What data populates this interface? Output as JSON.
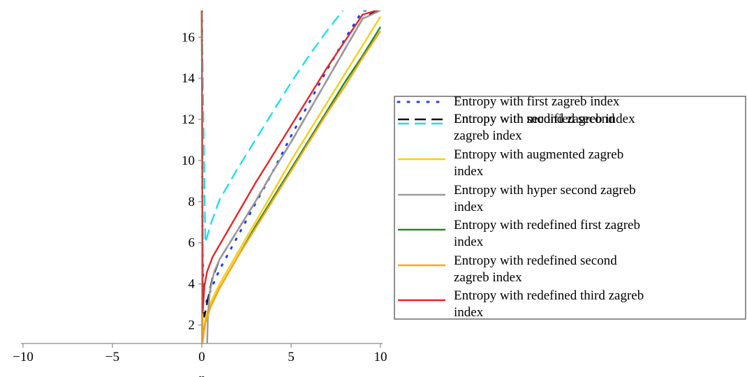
{
  "chart_data": {
    "type": "line",
    "xlabel": "n",
    "ylabel": "",
    "xlim": [
      -10,
      10
    ],
    "ylim": [
      1.1,
      17.3
    ],
    "x_ticks": [
      -10,
      -5,
      0,
      5,
      10
    ],
    "y_ticks": [
      2,
      4,
      6,
      8,
      10,
      12,
      14,
      16
    ],
    "grid": false,
    "legend_position": "right",
    "series": [
      {
        "name": "Entropy with first zagreb index",
        "color": "#1a3cff",
        "dash": "dotted",
        "x": [
          0.01,
          0.03,
          0.1,
          0.25,
          0.5,
          1,
          2,
          3,
          4,
          5,
          6,
          7,
          8,
          9,
          10
        ],
        "y": [
          17.3,
          6.0,
          3.4,
          3.1,
          3.7,
          4.7,
          6.3,
          7.9,
          9.5,
          11.2,
          12.8,
          14.4,
          15.9,
          17.3,
          17.3
        ]
      },
      {
        "name": "Entropy with second zagreb index",
        "color": "#111111",
        "dash": "longdash",
        "x": [
          0.01,
          0.05,
          0.15,
          0.3,
          0.6,
          1,
          2,
          3,
          4,
          5,
          6,
          7,
          8,
          9,
          10
        ],
        "y": [
          17.3,
          3.0,
          2.4,
          3.1,
          4.3,
          5.2,
          6.6,
          8.0,
          9.5,
          10.9,
          12.4,
          13.9,
          15.4,
          16.9,
          17.4
        ]
      },
      {
        "name": "Entropy with modified second zagreb index",
        "color": "#1fe0e8",
        "dash": "longdash",
        "x": [
          0.0,
          0.2,
          0.5,
          1,
          2,
          3,
          4,
          5,
          6,
          7,
          7.9
        ],
        "y": [
          17.3,
          6.0,
          6.9,
          8.1,
          9.6,
          11.0,
          12.4,
          13.8,
          15.1,
          16.3,
          17.3
        ]
      },
      {
        "name": "Entropy with augmented zagreb index",
        "color": "#f5cf1a",
        "dash": "solid",
        "x": [
          0.0,
          0.05,
          0.2,
          0.5,
          1,
          2,
          3,
          4,
          5,
          6,
          7,
          8,
          9,
          10
        ],
        "y": [
          17.3,
          1.1,
          2.3,
          3.1,
          4.0,
          5.5,
          7.0,
          8.5,
          10.0,
          11.4,
          12.8,
          14.2,
          15.6,
          17.0
        ]
      },
      {
        "name": "Entropy with hyper second zagreb index",
        "color": "#999999",
        "dash": "solid",
        "x": [
          0.3,
          0.35,
          0.45,
          0.7,
          1,
          2,
          3,
          4,
          5,
          6,
          7,
          8,
          9,
          10
        ],
        "y": [
          1.1,
          2.6,
          3.6,
          4.6,
          5.2,
          6.6,
          8.0,
          9.5,
          10.9,
          12.4,
          13.9,
          15.4,
          16.9,
          17.3
        ]
      },
      {
        "name": "Entropy with redefined first zagreb index",
        "color": "#1f8a1f",
        "dash": "solid",
        "x": [
          0.0,
          0.05,
          0.2,
          0.5,
          1,
          2,
          3,
          4,
          5,
          6,
          7,
          8,
          9,
          10
        ],
        "y": [
          17.3,
          1.3,
          2.1,
          2.9,
          3.8,
          5.3,
          6.8,
          8.2,
          9.6,
          11.0,
          12.4,
          13.8,
          15.1,
          16.5
        ]
      },
      {
        "name": "Entropy with redefined second zagreb index",
        "color": "#ffa515",
        "dash": "solid",
        "x": [
          0.0,
          0.05,
          0.2,
          0.5,
          1,
          2,
          3,
          4,
          5,
          6,
          7,
          8,
          9,
          10
        ],
        "y": [
          17.3,
          1.2,
          2.1,
          2.9,
          3.8,
          5.3,
          6.7,
          8.1,
          9.5,
          10.9,
          12.3,
          13.6,
          15.0,
          16.3
        ]
      },
      {
        "name": "Entropy with redefined third zagreb index",
        "color": "#e42626",
        "dash": "solid",
        "x": [
          0.0,
          0.05,
          0.15,
          0.3,
          0.6,
          1,
          2,
          3,
          4,
          5,
          6,
          7,
          8,
          9,
          9.8
        ],
        "y": [
          17.3,
          2.6,
          3.9,
          4.6,
          5.3,
          5.9,
          7.4,
          8.9,
          10.3,
          11.7,
          13.1,
          14.5,
          15.8,
          17.1,
          17.3
        ]
      }
    ]
  },
  "legend": {
    "entries": [
      {
        "lines": [
          "Entropy with first zagreb index"
        ]
      },
      {
        "lines": [
          "Entropy with second zagreb index"
        ]
      },
      {
        "lines": [
          "Entropy with modified second",
          "zagreb index"
        ]
      },
      {
        "lines": [
          "Entropy with augmented zagreb",
          "index"
        ]
      },
      {
        "lines": [
          "Entropy with hyper second zagreb",
          "index"
        ]
      },
      {
        "lines": [
          "Entropy with redefined first zagreb",
          "index"
        ]
      },
      {
        "lines": [
          "Entropy with redefined second",
          "zagreb index"
        ]
      },
      {
        "lines": [
          "Entropy with redefined third zagreb",
          "index"
        ]
      }
    ]
  }
}
